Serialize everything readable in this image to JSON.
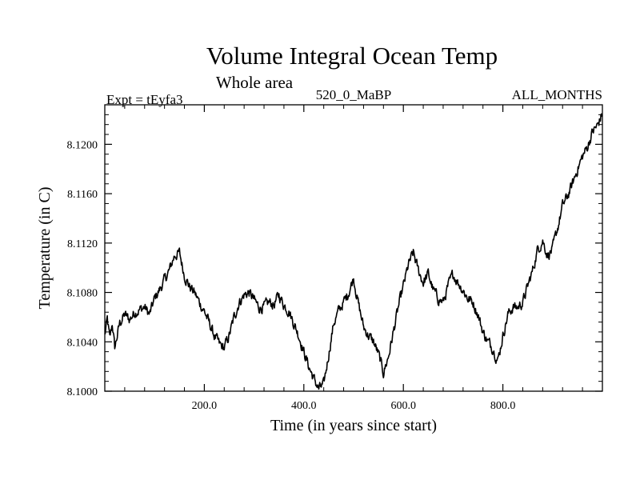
{
  "chart_data": {
    "type": "line",
    "title": "Volume Integral Ocean Temp",
    "subtitle": "Whole area",
    "annotations": {
      "left": "Expt = tEyfa3",
      "center": "520_0_MaBP",
      "right": "ALL_MONTHS"
    },
    "xlabel": "Time (in years since start)",
    "ylabel": "Temperature (in C)",
    "xlim": [
      0,
      1000
    ],
    "ylim": [
      8.1,
      8.1232
    ],
    "grid": false,
    "x_ticks": [
      200,
      400,
      600,
      800
    ],
    "x_tick_labels": [
      "200.0",
      "400.0",
      "600.0",
      "800.0"
    ],
    "y_ticks": [
      8.1,
      8.104,
      8.108,
      8.112,
      8.116,
      8.12
    ],
    "y_tick_labels": [
      "8.1000",
      "8.1040",
      "8.1080",
      "8.1120",
      "8.1160",
      "8.1200"
    ],
    "anchors": {
      "x": [
        0,
        5,
        10,
        15,
        20,
        30,
        40,
        50,
        60,
        70,
        80,
        90,
        100,
        110,
        120,
        130,
        140,
        150,
        160,
        170,
        180,
        190,
        200,
        210,
        220,
        230,
        240,
        250,
        260,
        270,
        280,
        290,
        300,
        310,
        320,
        330,
        340,
        350,
        360,
        370,
        380,
        390,
        400,
        410,
        420,
        430,
        440,
        450,
        460,
        470,
        480,
        490,
        500,
        510,
        520,
        530,
        540,
        550,
        560,
        570,
        580,
        590,
        600,
        610,
        620,
        630,
        640,
        650,
        660,
        670,
        680,
        690,
        700,
        710,
        720,
        730,
        740,
        750,
        760,
        770,
        780,
        790,
        800,
        810,
        820,
        830,
        840,
        850,
        860,
        870,
        880,
        890,
        900,
        910,
        920,
        930,
        940,
        950,
        960,
        970,
        980,
        990,
        1000
      ],
      "y": [
        8.1045,
        8.1058,
        8.1042,
        8.1055,
        8.1035,
        8.1055,
        8.1062,
        8.1058,
        8.1064,
        8.1066,
        8.1068,
        8.1062,
        8.1075,
        8.1082,
        8.109,
        8.1098,
        8.111,
        8.1112,
        8.1094,
        8.1085,
        8.108,
        8.1072,
        8.1065,
        8.1055,
        8.1045,
        8.1038,
        8.1035,
        8.1045,
        8.106,
        8.1072,
        8.1078,
        8.108,
        8.1074,
        8.1068,
        8.1068,
        8.1072,
        8.107,
        8.1078,
        8.107,
        8.1065,
        8.1055,
        8.1045,
        8.1032,
        8.102,
        8.101,
        8.1002,
        8.1005,
        8.103,
        8.1055,
        8.1065,
        8.1072,
        8.108,
        8.1092,
        8.107,
        8.1052,
        8.1045,
        8.104,
        8.103,
        8.1015,
        8.1028,
        8.1048,
        8.1068,
        8.1085,
        8.1102,
        8.1112,
        8.1098,
        8.1088,
        8.1095,
        8.1082,
        8.1075,
        8.1072,
        8.1085,
        8.1095,
        8.1088,
        8.1082,
        8.1075,
        8.1072,
        8.1062,
        8.1048,
        8.104,
        8.1035,
        8.1025,
        8.1045,
        8.1062,
        8.1068,
        8.1068,
        8.1072,
        8.1085,
        8.1098,
        8.1115,
        8.1122,
        8.111,
        8.1115,
        8.1132,
        8.115,
        8.1158,
        8.1168,
        8.118,
        8.119,
        8.1198,
        8.121,
        8.1215,
        8.1225
      ]
    },
    "noise_amplitude": 0.0008,
    "series_color": "#000000"
  }
}
